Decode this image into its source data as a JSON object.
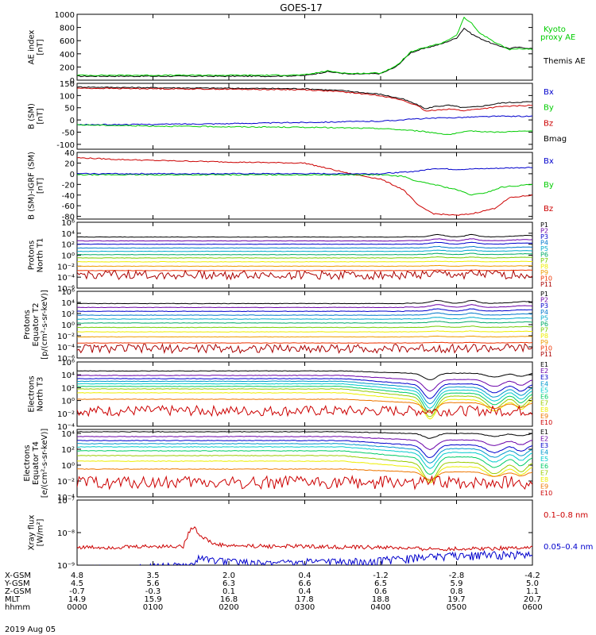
{
  "title": "GOES-17",
  "date_label": "2019 Aug 05",
  "chart_data": {
    "type": "line",
    "x_range": [
      0,
      6
    ],
    "x_ticks": [
      0,
      1,
      2,
      3,
      4,
      5,
      6
    ],
    "panels": [
      {
        "ylabel": [
          "AE index",
          "[nT]"
        ],
        "ylim": [
          0,
          1000
        ],
        "log": false,
        "yticks": [
          0,
          200,
          400,
          600,
          800,
          1000
        ],
        "yticklabels": [
          "0",
          "200",
          "400",
          "600",
          "800",
          "1000"
        ],
        "legend": [
          {
            "text": "Kyoto",
            "color": "#00cc00"
          },
          {
            "text": "proxy AE",
            "color": "#00cc00"
          },
          {
            "text": "Themis AE",
            "color": "#000000"
          }
        ],
        "series": [
          {
            "color": "#000000",
            "x": [
              0,
              0.5,
              1,
              1.5,
              2,
              2.5,
              3,
              3.3,
              3.6,
              4,
              4.2,
              4.4,
              4.6,
              4.8,
              5,
              5.1,
              5.2,
              5.3,
              5.5,
              5.7,
              5.8,
              6
            ],
            "y": [
              60,
              60,
              60,
              60,
              60,
              60,
              70,
              130,
              90,
              100,
              200,
              420,
              490,
              550,
              640,
              790,
              700,
              640,
              540,
              480,
              500,
              480
            ]
          },
          {
            "color": "#00cc00",
            "x": [
              0,
              0.5,
              1,
              1.5,
              2,
              2.5,
              3,
              3.3,
              3.6,
              4,
              4.2,
              4.4,
              4.6,
              4.8,
              5,
              5.1,
              5.2,
              5.3,
              5.5,
              5.7,
              5.8,
              6
            ],
            "y": [
              75,
              75,
              75,
              75,
              75,
              75,
              80,
              140,
              100,
              110,
              210,
              430,
              500,
              560,
              680,
              950,
              860,
              720,
              580,
              460,
              480,
              470
            ]
          }
        ]
      },
      {
        "ylabel": [
          "B (SM)",
          "[nT]"
        ],
        "ylim": [
          -120,
          150
        ],
        "log": false,
        "yticks": [
          -100,
          -50,
          0,
          50,
          100,
          150
        ],
        "yticklabels": [
          "-100",
          "-50",
          "0",
          "50",
          "100",
          "150"
        ],
        "legend": [
          {
            "text": "Bx",
            "color": "#0000cc"
          },
          {
            "text": "By",
            "color": "#00cc00"
          },
          {
            "text": "Bz",
            "color": "#cc0000"
          },
          {
            "text": "Bmag",
            "color": "#000000"
          }
        ],
        "series": [
          {
            "color": "#000000",
            "x": [
              0,
              1,
              2,
              3,
              3.5,
              4,
              4.3,
              4.5,
              4.6,
              4.7,
              4.9,
              5.1,
              5.3,
              5.6,
              6
            ],
            "y": [
              135,
              132,
              130,
              128,
              120,
              105,
              85,
              60,
              45,
              55,
              60,
              50,
              55,
              70,
              75
            ]
          },
          {
            "color": "#cc0000",
            "x": [
              0,
              1,
              2,
              3,
              3.5,
              4,
              4.3,
              4.5,
              4.6,
              4.7,
              4.9,
              5.1,
              5.3,
              5.6,
              6
            ],
            "y": [
              130,
              128,
              126,
              124,
              115,
              100,
              80,
              55,
              35,
              40,
              45,
              38,
              45,
              55,
              60
            ]
          },
          {
            "color": "#0000cc",
            "x": [
              0,
              1,
              2,
              3,
              4,
              4.5,
              5,
              5.5,
              6
            ],
            "y": [
              -20,
              -18,
              -15,
              -10,
              -5,
              5,
              10,
              15,
              15
            ]
          },
          {
            "color": "#00cc00",
            "x": [
              0,
              1,
              2,
              3,
              4,
              4.5,
              4.9,
              5.2,
              5.5,
              6
            ],
            "y": [
              -20,
              -25,
              -28,
              -30,
              -35,
              -45,
              -60,
              -45,
              -50,
              -45
            ]
          }
        ]
      },
      {
        "ylabel": [
          "B (SM)-IGRF (SM)",
          "[nT]"
        ],
        "ylim": [
          -85,
          40
        ],
        "log": false,
        "yticks": [
          -80,
          -60,
          -40,
          -20,
          0,
          20,
          40
        ],
        "yticklabels": [
          "-80",
          "-60",
          "-40",
          "-20",
          "0",
          "20",
          "40"
        ],
        "legend": [
          {
            "text": "Bx",
            "color": "#0000cc"
          },
          {
            "text": "By",
            "color": "#00cc00"
          },
          {
            "text": "Bz",
            "color": "#cc0000"
          }
        ],
        "series": [
          {
            "color": "#cc0000",
            "x": [
              0,
              0.5,
              1,
              2,
              3,
              3.3,
              3.6,
              4,
              4.3,
              4.5,
              4.7,
              5,
              5.2,
              5.5,
              5.7,
              6
            ],
            "y": [
              30,
              27,
              25,
              22,
              20,
              10,
              0,
              -10,
              -30,
              -60,
              -75,
              -78,
              -75,
              -65,
              -45,
              -40
            ]
          },
          {
            "color": "#00cc00",
            "x": [
              0,
              1,
              2,
              3,
              4,
              4.3,
              4.5,
              4.7,
              5,
              5.2,
              5.4,
              5.6,
              6
            ],
            "y": [
              -2,
              -2,
              -2,
              -2,
              -2,
              -5,
              -15,
              -20,
              -30,
              -40,
              -35,
              -25,
              -20
            ]
          },
          {
            "color": "#0000cc",
            "x": [
              0,
              1,
              2,
              3,
              4,
              4.5,
              4.7,
              5,
              5.5,
              6
            ],
            "y": [
              0,
              0,
              0,
              0,
              0,
              5,
              10,
              8,
              10,
              12
            ]
          }
        ]
      },
      {
        "ylabel": [
          "Protons",
          "North T1"
        ],
        "ylim": [
          -6,
          6
        ],
        "log": true,
        "yticks": [
          -6,
          -4,
          -2,
          0,
          2,
          4,
          6
        ],
        "yticklabels": [
          "10⁻⁶",
          "10⁻⁴",
          "10⁻²",
          "10⁰",
          "10²",
          "10⁴",
          "10⁶"
        ],
        "legend": [
          {
            "text": "P1",
            "color": "#000000"
          },
          {
            "text": "P2",
            "color": "#6a00a8"
          },
          {
            "text": "P3",
            "color": "#0000cc"
          },
          {
            "text": "P4",
            "color": "#0077cc"
          },
          {
            "text": "P5",
            "color": "#00aacc"
          },
          {
            "text": "P6",
            "color": "#00aa66"
          },
          {
            "text": "P7",
            "color": "#77cc00"
          },
          {
            "text": "P8",
            "color": "#eeee00"
          },
          {
            "text": "P9",
            "color": "#ee9900"
          },
          {
            "text": "P10",
            "color": "#ee3300"
          },
          {
            "text": "P11",
            "color": "#aa0000"
          }
        ],
        "levels": [
          3.3,
          2.6,
          2.0,
          1.3,
          0.7,
          0.1,
          -0.5,
          -1.2,
          -2.0,
          -2.8,
          -3.6
        ],
        "bump": [
          0.4,
          0.35,
          0.3,
          0.25,
          0.2,
          0.2,
          0.15,
          0.1,
          0.1,
          0.1,
          0.1
        ]
      },
      {
        "ylabel": [
          "Protons",
          "Equator T2",
          "[p/(cm²-s-sr-keV)]"
        ],
        "ylim": [
          -6,
          6
        ],
        "log": true,
        "yticks": [
          -6,
          -4,
          -2,
          0,
          2,
          4,
          6
        ],
        "yticklabels": [
          "10⁻⁶",
          "10⁻⁴",
          "10⁻²",
          "10⁰",
          "10²",
          "10⁴",
          "10⁶"
        ],
        "legend": [
          {
            "text": "P1",
            "color": "#000000"
          },
          {
            "text": "P2",
            "color": "#6a00a8"
          },
          {
            "text": "P3",
            "color": "#0000cc"
          },
          {
            "text": "P4",
            "color": "#0077cc"
          },
          {
            "text": "P5",
            "color": "#00aacc"
          },
          {
            "text": "P6",
            "color": "#00aa66"
          },
          {
            "text": "P7",
            "color": "#77cc00"
          },
          {
            "text": "P8",
            "color": "#eeee00"
          },
          {
            "text": "P9",
            "color": "#ee9900"
          },
          {
            "text": "P10",
            "color": "#ee3300"
          },
          {
            "text": "P11",
            "color": "#aa0000"
          }
        ],
        "levels": [
          3.8,
          3.1,
          2.4,
          1.7,
          1.0,
          0.3,
          -0.5,
          -1.3,
          -2.2,
          -3.3,
          -4.3
        ],
        "bump": [
          0.5,
          0.45,
          0.4,
          0.35,
          0.3,
          0.25,
          0.2,
          0.15,
          0.1,
          0.1,
          0.1
        ]
      },
      {
        "ylabel": [
          "Electrons",
          "North T3"
        ],
        "ylim": [
          -4,
          6
        ],
        "log": true,
        "yticks": [
          -4,
          -2,
          0,
          2,
          4,
          6
        ],
        "yticklabels": [
          "10⁻⁴",
          "10⁻²",
          "10⁰",
          "10²",
          "10⁴",
          "10⁶"
        ],
        "legend": [
          {
            "text": "E1",
            "color": "#000000"
          },
          {
            "text": "E2",
            "color": "#6a00a8"
          },
          {
            "text": "E3",
            "color": "#0000cc"
          },
          {
            "text": "E4",
            "color": "#0099cc"
          },
          {
            "text": "E5",
            "color": "#00cccc"
          },
          {
            "text": "E6",
            "color": "#00cc66"
          },
          {
            "text": "E7",
            "color": "#99cc00"
          },
          {
            "text": "E8",
            "color": "#eeee00"
          },
          {
            "text": "E9",
            "color": "#ee7700"
          },
          {
            "text": "E10",
            "color": "#cc0000"
          }
        ],
        "levels": [
          4.6,
          3.9,
          3.4,
          3.0,
          2.6,
          2.2,
          1.8,
          1.2,
          0.2,
          -1.6
        ],
        "dip": [
          1.0,
          1.8,
          2.3,
          2.6,
          2.8,
          3.0,
          3.2,
          3.0,
          1.5,
          0.0
        ]
      },
      {
        "ylabel": [
          "Electrons",
          "Equator T4",
          "[e/(cm²-s-sr-keV)]"
        ],
        "ylim": [
          -4,
          4.5
        ],
        "log": true,
        "yticks": [
          -4,
          -2,
          0,
          2,
          4
        ],
        "yticklabels": [
          "10⁻⁴",
          "10⁻²",
          "10⁰",
          "10²",
          "10⁴"
        ],
        "legend": [
          {
            "text": "E1",
            "color": "#000000"
          },
          {
            "text": "E2",
            "color": "#6a00a8"
          },
          {
            "text": "E3",
            "color": "#0000cc"
          },
          {
            "text": "E4",
            "color": "#0099cc"
          },
          {
            "text": "E5",
            "color": "#00cccc"
          },
          {
            "text": "E6",
            "color": "#00cc66"
          },
          {
            "text": "E7",
            "color": "#99cc00"
          },
          {
            "text": "E8",
            "color": "#eeee00"
          },
          {
            "text": "E9",
            "color": "#ee7700"
          },
          {
            "text": "E10",
            "color": "#cc0000"
          }
        ],
        "levels": [
          4.2,
          3.6,
          3.1,
          2.7,
          2.3,
          1.8,
          1.2,
          0.5,
          -0.5,
          -2.2
        ],
        "dip": [
          0.6,
          1.2,
          1.6,
          1.8,
          2.0,
          2.2,
          2.4,
          2.0,
          1.0,
          0.0
        ]
      },
      {
        "ylabel": [
          "Xray flux",
          "[W/m²]"
        ],
        "ylim": [
          -9,
          -7
        ],
        "log": true,
        "yticks": [
          -9,
          -8,
          -7
        ],
        "yticklabels": [
          "10⁻⁹",
          "10⁻⁸",
          "10⁻⁷"
        ],
        "legend": [
          {
            "text": "0.1–0.8 nm",
            "color": "#cc0000"
          },
          {
            "text": "0.05–0.4 nm",
            "color": "#0000cc"
          }
        ],
        "series": [
          {
            "color": "#cc0000",
            "x": [
              0,
              0.5,
              1,
              1.4,
              1.5,
              1.55,
              1.6,
              1.7,
              1.8,
              2,
              2.5,
              3,
              3.5,
              4,
              4.5,
              5,
              5.5,
              6
            ],
            "y": [
              -8.45,
              -8.45,
              -8.42,
              -8.42,
              -7.85,
              -7.82,
              -8.05,
              -8.2,
              -8.35,
              -8.4,
              -8.42,
              -8.42,
              -8.45,
              -8.45,
              -8.5,
              -8.5,
              -8.48,
              -8.45
            ]
          },
          {
            "color": "#0000cc",
            "x": [
              0,
              0.5,
              1,
              1.5,
              1.6,
              2,
              2.5,
              3,
              3.5,
              4,
              4.5,
              5,
              5.5,
              6
            ],
            "y": [
              -9,
              -9,
              -8.95,
              -8.9,
              -8.7,
              -8.8,
              -8.85,
              -8.8,
              -8.8,
              -8.75,
              -8.65,
              -8.6,
              -8.55,
              -8.55
            ]
          }
        ]
      }
    ]
  },
  "ephemeris": {
    "rows": [
      {
        "label": "X-GSM",
        "values": [
          "4.8",
          "3.5",
          "2.0",
          "0.4",
          "-1.2",
          "-2.8",
          "-4.2"
        ]
      },
      {
        "label": "Y-GSM",
        "values": [
          "4.5",
          "5.6",
          "6.3",
          "6.6",
          "6.5",
          "5.9",
          "5.0"
        ]
      },
      {
        "label": "Z-GSM",
        "values": [
          "-0.7",
          "-0.3",
          "0.1",
          "0.4",
          "0.6",
          "0.8",
          "1.1"
        ]
      },
      {
        "label": "MLT",
        "values": [
          "14.9",
          "15.9",
          "16.8",
          "17.8",
          "18.8",
          "19.7",
          "20.7"
        ]
      },
      {
        "label": "hhmm",
        "values": [
          "0000",
          "0100",
          "0200",
          "0300",
          "0400",
          "0500",
          "0600"
        ]
      }
    ]
  }
}
